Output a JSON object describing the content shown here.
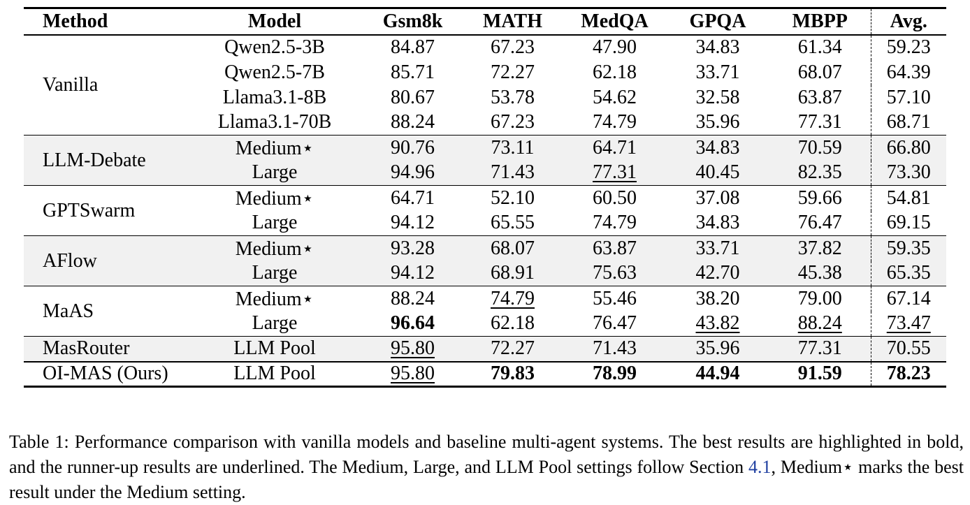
{
  "table": {
    "headers": [
      "Method",
      "Model",
      "Gsm8k",
      "MATH",
      "MedQA",
      "GPQA",
      "MBPP",
      "Avg."
    ],
    "groups": [
      {
        "method": "Vanilla",
        "rows": [
          {
            "model": "Qwen2.5-3B",
            "values": [
              "84.87",
              "67.23",
              "47.90",
              "34.83",
              "61.34",
              "59.23"
            ],
            "styles": [
              "",
              "",
              "",
              "",
              "",
              ""
            ]
          },
          {
            "model": "Qwen2.5-7B",
            "values": [
              "85.71",
              "72.27",
              "62.18",
              "33.71",
              "68.07",
              "64.39"
            ],
            "styles": [
              "",
              "",
              "",
              "",
              "",
              ""
            ]
          },
          {
            "model": "Llama3.1-8B",
            "values": [
              "80.67",
              "53.78",
              "54.62",
              "32.58",
              "63.87",
              "57.10"
            ],
            "styles": [
              "",
              "",
              "",
              "",
              "",
              ""
            ]
          },
          {
            "model": "Llama3.1-70B",
            "values": [
              "88.24",
              "67.23",
              "74.79",
              "35.96",
              "77.31",
              "68.71"
            ],
            "styles": [
              "",
              "",
              "",
              "",
              "",
              ""
            ]
          }
        ]
      },
      {
        "method": "LLM-Debate",
        "shaded": true,
        "rows": [
          {
            "model": "Medium⋆",
            "values": [
              "90.76",
              "73.11",
              "64.71",
              "34.83",
              "70.59",
              "66.80"
            ],
            "styles": [
              "",
              "",
              "",
              "",
              "",
              ""
            ]
          },
          {
            "model": "Large",
            "values": [
              "94.96",
              "71.43",
              "77.31",
              "40.45",
              "82.35",
              "73.30"
            ],
            "styles": [
              "",
              "",
              "underline",
              "",
              "",
              ""
            ]
          }
        ]
      },
      {
        "method": "GPTSwarm",
        "rows": [
          {
            "model": "Medium⋆",
            "values": [
              "64.71",
              "52.10",
              "60.50",
              "37.08",
              "59.66",
              "54.81"
            ],
            "styles": [
              "",
              "",
              "",
              "",
              "",
              ""
            ]
          },
          {
            "model": "Large",
            "values": [
              "94.12",
              "65.55",
              "74.79",
              "34.83",
              "76.47",
              "69.15"
            ],
            "styles": [
              "",
              "",
              "",
              "",
              "",
              ""
            ]
          }
        ]
      },
      {
        "method": "AFlow",
        "shaded": true,
        "rows": [
          {
            "model": "Medium⋆",
            "values": [
              "93.28",
              "68.07",
              "63.87",
              "33.71",
              "37.82",
              "59.35"
            ],
            "styles": [
              "",
              "",
              "",
              "",
              "",
              ""
            ]
          },
          {
            "model": "Large",
            "values": [
              "94.12",
              "68.91",
              "75.63",
              "42.70",
              "45.38",
              "65.35"
            ],
            "styles": [
              "",
              "",
              "",
              "",
              "",
              ""
            ]
          }
        ]
      },
      {
        "method": "MaAS",
        "rows": [
          {
            "model": "Medium⋆",
            "values": [
              "88.24",
              "74.79",
              "55.46",
              "38.20",
              "79.00",
              "67.14"
            ],
            "styles": [
              "",
              "underline",
              "",
              "",
              "",
              ""
            ]
          },
          {
            "model": "Large",
            "values": [
              "96.64",
              "62.18",
              "76.47",
              "43.82",
              "88.24",
              "73.47"
            ],
            "styles": [
              "bold",
              "",
              "",
              "underline",
              "underline",
              "underline"
            ]
          }
        ]
      },
      {
        "method": "MasRouter",
        "shaded": true,
        "rows": [
          {
            "model": "LLM Pool",
            "values": [
              "95.80",
              "72.27",
              "71.43",
              "35.96",
              "77.31",
              "70.55"
            ],
            "styles": [
              "underline",
              "",
              "",
              "",
              "",
              ""
            ]
          }
        ]
      },
      {
        "method": "OI-MAS (Ours)",
        "final": true,
        "rows": [
          {
            "model": "LLM Pool",
            "values": [
              "95.80",
              "79.83",
              "78.99",
              "44.94",
              "91.59",
              "78.23"
            ],
            "styles": [
              "underline",
              "bold",
              "bold",
              "bold",
              "bold",
              "bold"
            ]
          }
        ]
      }
    ]
  },
  "caption": {
    "part1": "Table 1:  Performance comparison with vanilla models and baseline multi-agent systems. The best results are highlighted in bold, and the runner-up results are underlined. The Medium, Large, and LLM Pool settings follow Section ",
    "ref": "4.1",
    "part2": ", Medium⋆ marks the best result under the Medium setting."
  }
}
